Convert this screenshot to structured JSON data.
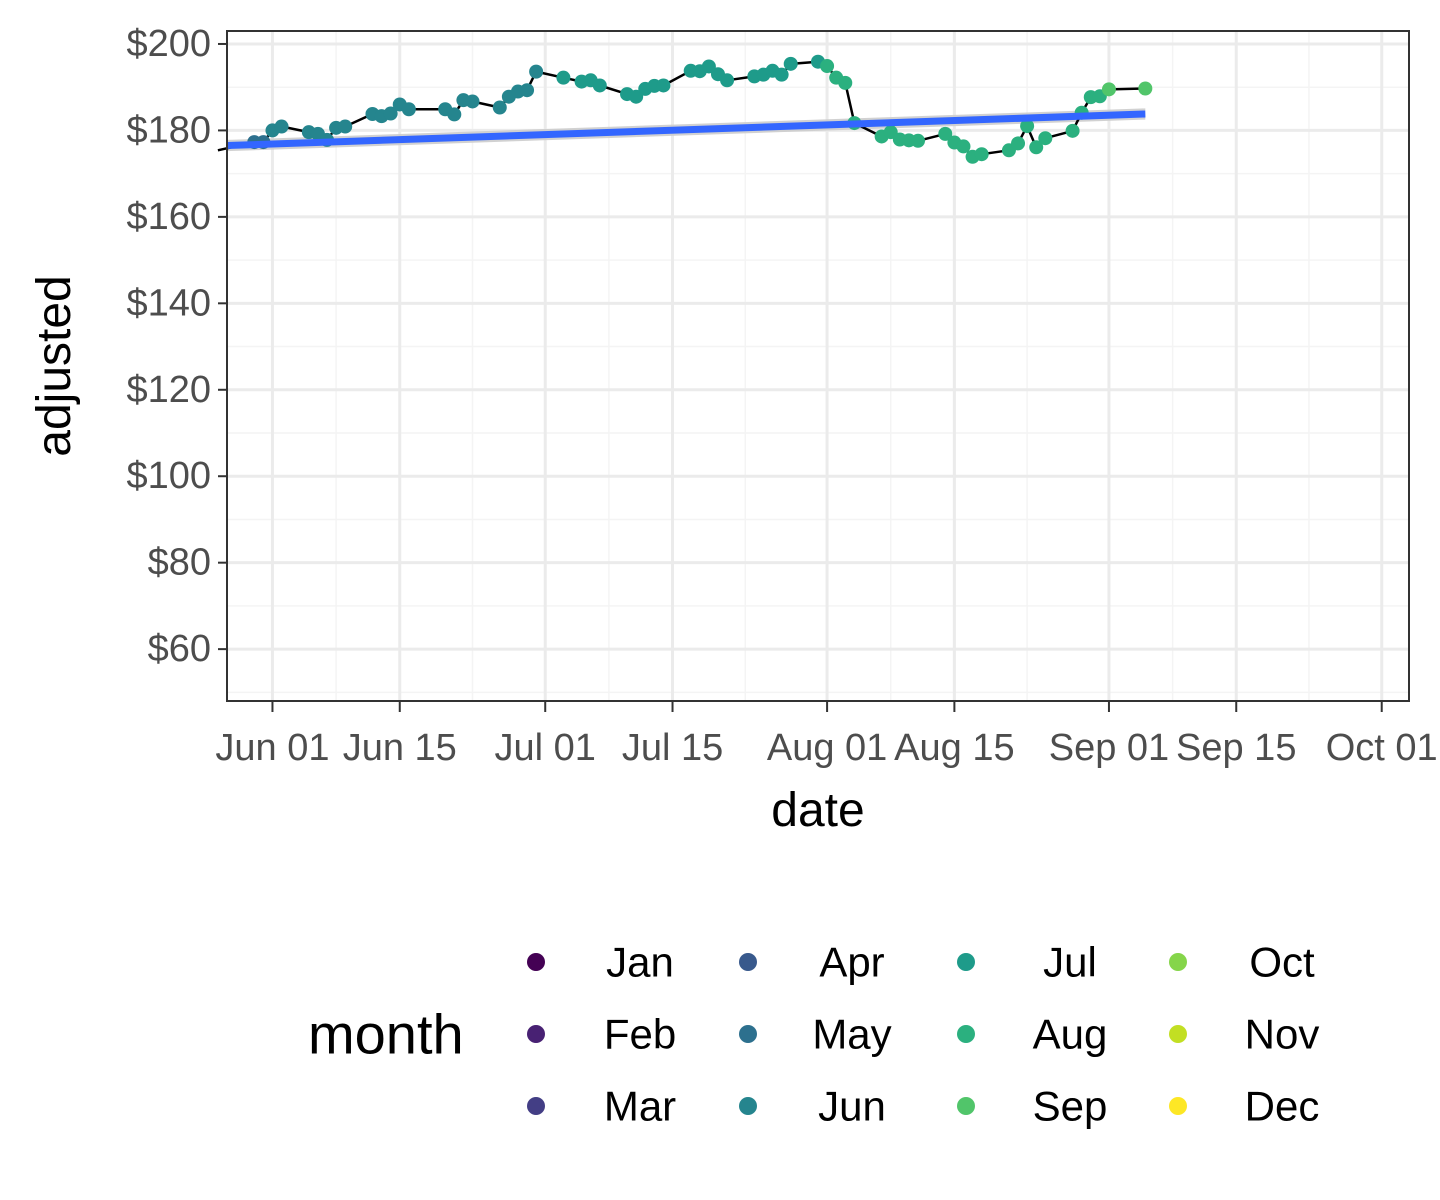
{
  "chart_data": {
    "type": "line",
    "xlabel": "date",
    "ylabel": "adjusted",
    "x_range": [
      "2023-05-27",
      "2023-10-04"
    ],
    "ylim": [
      48,
      203
    ],
    "x_ticks": [
      {
        "date": "2023-06-01",
        "label": "Jun 01"
      },
      {
        "date": "2023-06-15",
        "label": "Jun 15"
      },
      {
        "date": "2023-07-01",
        "label": "Jul 01"
      },
      {
        "date": "2023-07-15",
        "label": "Jul 15"
      },
      {
        "date": "2023-08-01",
        "label": "Aug 01"
      },
      {
        "date": "2023-08-15",
        "label": "Aug 15"
      },
      {
        "date": "2023-09-01",
        "label": "Sep 01"
      },
      {
        "date": "2023-09-15",
        "label": "Sep 15"
      },
      {
        "date": "2023-10-01",
        "label": "Oct 01"
      }
    ],
    "x_minor_ticks": [
      "2023-05-25",
      "2023-06-08",
      "2023-06-23",
      "2023-07-08",
      "2023-07-23",
      "2023-08-08",
      "2023-08-23",
      "2023-09-08",
      "2023-09-23"
    ],
    "y_ticks": [
      60,
      80,
      100,
      120,
      140,
      160,
      180,
      200
    ],
    "y_tick_labels": [
      "$60",
      "$80",
      "$100",
      "$120",
      "$140",
      "$160",
      "$180",
      "$200"
    ],
    "y_minor_ticks": [
      50,
      70,
      90,
      110,
      130,
      150,
      170,
      190
    ],
    "grid": true,
    "colors": {
      "line": "#000000",
      "trend": "#3366FF",
      "band": "#cccccc",
      "grid_major": "#ebebeb",
      "grid_minor": "#f4f4f4",
      "border": "#333333"
    },
    "series": [
      {
        "name": "adjusted",
        "points": [
          [
            "2023-05-26",
            175.4,
            "May"
          ],
          [
            "2023-05-30",
            177.3,
            "May"
          ],
          [
            "2023-05-31",
            177.3,
            "May"
          ],
          [
            "2023-06-01",
            180.0,
            "Jun"
          ],
          [
            "2023-06-02",
            180.9,
            "Jun"
          ],
          [
            "2023-06-05",
            179.6,
            "Jun"
          ],
          [
            "2023-06-06",
            179.2,
            "Jun"
          ],
          [
            "2023-06-07",
            177.8,
            "Jun"
          ],
          [
            "2023-06-08",
            180.6,
            "Jun"
          ],
          [
            "2023-06-09",
            180.9,
            "Jun"
          ],
          [
            "2023-06-12",
            183.8,
            "Jun"
          ],
          [
            "2023-06-13",
            183.3,
            "Jun"
          ],
          [
            "2023-06-14",
            183.9,
            "Jun"
          ],
          [
            "2023-06-15",
            186.0,
            "Jun"
          ],
          [
            "2023-06-16",
            184.9,
            "Jun"
          ],
          [
            "2023-06-20",
            184.9,
            "Jun"
          ],
          [
            "2023-06-21",
            183.7,
            "Jun"
          ],
          [
            "2023-06-22",
            187.0,
            "Jun"
          ],
          [
            "2023-06-23",
            186.7,
            "Jun"
          ],
          [
            "2023-06-26",
            185.3,
            "Jun"
          ],
          [
            "2023-06-27",
            187.8,
            "Jun"
          ],
          [
            "2023-06-28",
            189.0,
            "Jun"
          ],
          [
            "2023-06-29",
            189.3,
            "Jun"
          ],
          [
            "2023-06-30",
            193.6,
            "Jun"
          ],
          [
            "2023-07-03",
            192.2,
            "Jul"
          ],
          [
            "2023-07-05",
            191.3,
            "Jul"
          ],
          [
            "2023-07-06",
            191.6,
            "Jul"
          ],
          [
            "2023-07-07",
            190.4,
            "Jul"
          ],
          [
            "2023-07-10",
            188.4,
            "Jul"
          ],
          [
            "2023-07-11",
            187.8,
            "Jul"
          ],
          [
            "2023-07-12",
            189.6,
            "Jul"
          ],
          [
            "2023-07-13",
            190.3,
            "Jul"
          ],
          [
            "2023-07-14",
            190.4,
            "Jul"
          ],
          [
            "2023-07-17",
            193.8,
            "Jul"
          ],
          [
            "2023-07-18",
            193.7,
            "Jul"
          ],
          [
            "2023-07-19",
            194.8,
            "Jul"
          ],
          [
            "2023-07-20",
            193.0,
            "Jul"
          ],
          [
            "2023-07-21",
            191.6,
            "Jul"
          ],
          [
            "2023-07-24",
            192.5,
            "Jul"
          ],
          [
            "2023-07-25",
            192.9,
            "Jul"
          ],
          [
            "2023-07-26",
            193.8,
            "Jul"
          ],
          [
            "2023-07-27",
            192.9,
            "Jul"
          ],
          [
            "2023-07-28",
            195.4,
            "Jul"
          ],
          [
            "2023-07-31",
            195.9,
            "Jul"
          ],
          [
            "2023-08-01",
            194.9,
            "Aug"
          ],
          [
            "2023-08-02",
            192.2,
            "Aug"
          ],
          [
            "2023-08-03",
            191.0,
            "Aug"
          ],
          [
            "2023-08-04",
            181.7,
            "Aug"
          ],
          [
            "2023-08-07",
            178.6,
            "Aug"
          ],
          [
            "2023-08-08",
            179.6,
            "Aug"
          ],
          [
            "2023-08-09",
            177.9,
            "Aug"
          ],
          [
            "2023-08-10",
            177.7,
            "Aug"
          ],
          [
            "2023-08-11",
            177.6,
            "Aug"
          ],
          [
            "2023-08-14",
            179.2,
            "Aug"
          ],
          [
            "2023-08-15",
            177.2,
            "Aug"
          ],
          [
            "2023-08-16",
            176.3,
            "Aug"
          ],
          [
            "2023-08-17",
            173.9,
            "Aug"
          ],
          [
            "2023-08-18",
            174.5,
            "Aug"
          ],
          [
            "2023-08-21",
            175.4,
            "Aug"
          ],
          [
            "2023-08-22",
            177.0,
            "Aug"
          ],
          [
            "2023-08-23",
            181.0,
            "Aug"
          ],
          [
            "2023-08-24",
            176.1,
            "Aug"
          ],
          [
            "2023-08-25",
            178.2,
            "Aug"
          ],
          [
            "2023-08-28",
            179.9,
            "Aug"
          ],
          [
            "2023-08-29",
            184.1,
            "Aug"
          ],
          [
            "2023-08-30",
            187.7,
            "Aug"
          ],
          [
            "2023-08-31",
            187.9,
            "Aug"
          ],
          [
            "2023-09-01",
            189.5,
            "Sep"
          ],
          [
            "2023-09-05",
            189.7,
            "Sep"
          ]
        ]
      }
    ],
    "trend": {
      "type": "linear",
      "x": [
        "2023-05-27",
        "2023-09-05"
      ],
      "y": [
        176.5,
        183.8
      ],
      "band": 1.3
    },
    "legend": {
      "title": "month",
      "position": "bottom",
      "entries": [
        {
          "label": "Jan",
          "color": "#440154"
        },
        {
          "label": "Feb",
          "color": "#482173"
        },
        {
          "label": "Mar",
          "color": "#433E85"
        },
        {
          "label": "Apr",
          "color": "#38598C"
        },
        {
          "label": "May",
          "color": "#2D708E"
        },
        {
          "label": "Jun",
          "color": "#25858E"
        },
        {
          "label": "Jul",
          "color": "#1E9B8A"
        },
        {
          "label": "Aug",
          "color": "#2BB07F"
        },
        {
          "label": "Sep",
          "color": "#51C56A"
        },
        {
          "label": "Oct",
          "color": "#85D54A"
        },
        {
          "label": "Nov",
          "color": "#C2DF23"
        },
        {
          "label": "Dec",
          "color": "#FDE725"
        }
      ]
    }
  }
}
